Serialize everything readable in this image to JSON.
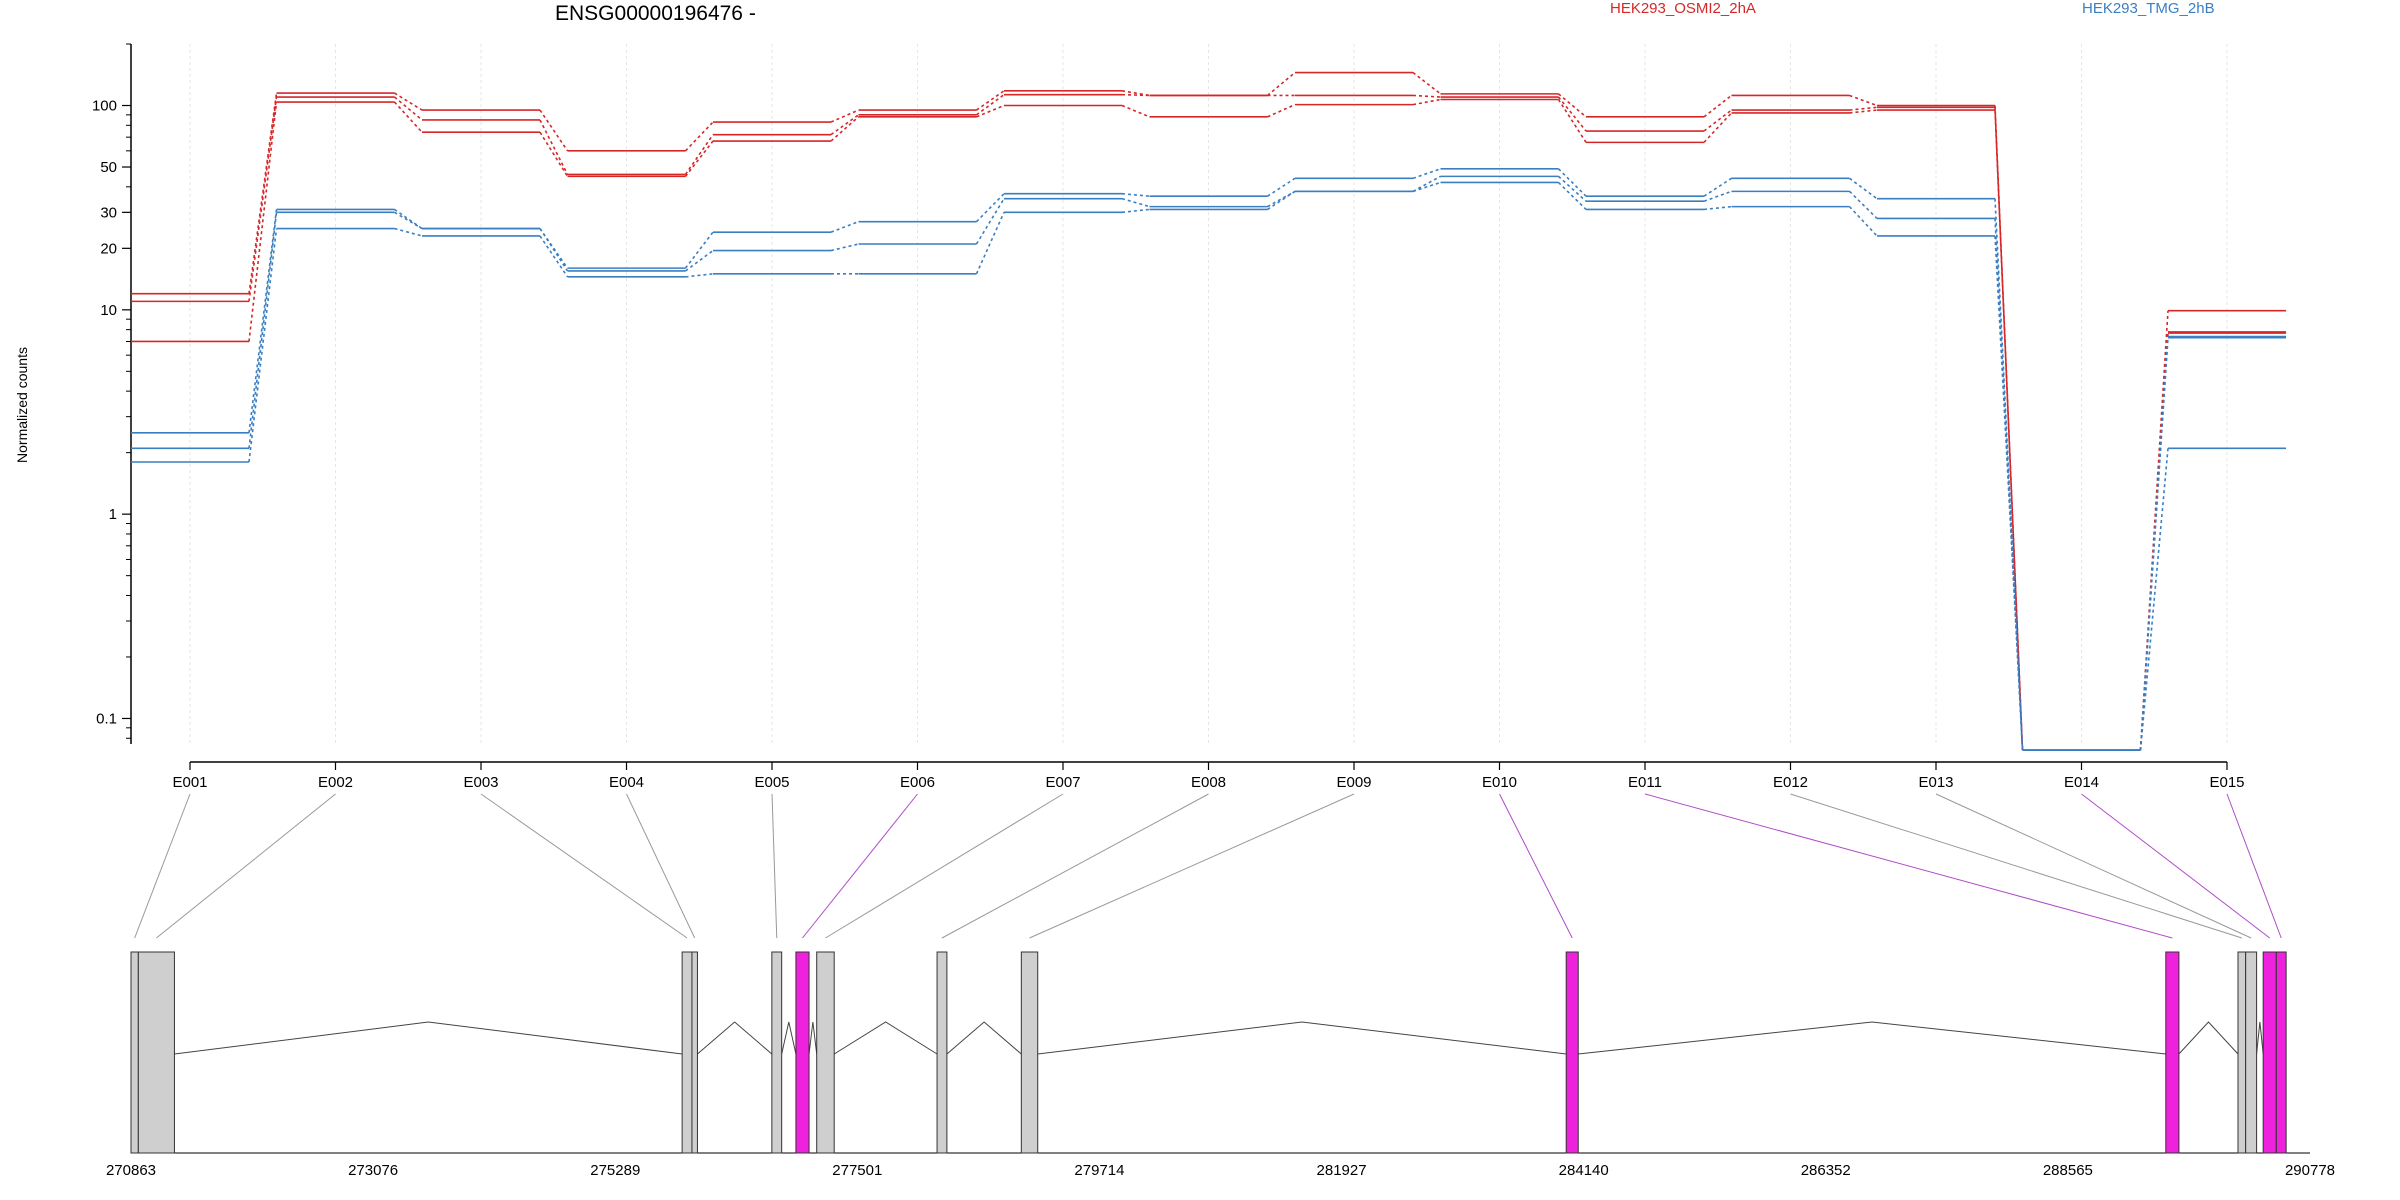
{
  "chart_data": {
    "type": "line",
    "title": "ENSG00000196476 -",
    "ylabel": "Normalized counts",
    "yscale": "log",
    "ylim": [
      0.075,
      200
    ],
    "yticks": [
      0.1,
      1,
      10,
      20,
      30,
      50,
      100
    ],
    "ytick_labels": [
      "0.1",
      "1",
      "10",
      "20",
      "30",
      "50",
      "100"
    ],
    "categories": [
      "E001",
      "E002",
      "E003",
      "E004",
      "E005",
      "E006",
      "E007",
      "E008",
      "E009",
      "E010",
      "E011",
      "E012",
      "E013",
      "E014",
      "E015"
    ],
    "series": [
      {
        "name": "HEK293_OSMI2_2hA",
        "color": "#d62728",
        "lines": [
          [
            12,
            115,
            95,
            60,
            83,
            95,
            118,
            112,
            145,
            114,
            88,
            112,
            100,
            0.07,
            9.9
          ],
          [
            11,
            110,
            85,
            46,
            72,
            90,
            113,
            112,
            112,
            110,
            75,
            95,
            98,
            0.07,
            7.8
          ],
          [
            7,
            104,
            74,
            45,
            67,
            88,
            100,
            88,
            101,
            107,
            66,
            92,
            95,
            0.07,
            7.7
          ]
        ]
      },
      {
        "name": "HEK293_TMG_2hB",
        "color": "#3a7fc1",
        "lines": [
          [
            2.5,
            31,
            25,
            16,
            24,
            27,
            37,
            36,
            44,
            49,
            36,
            44,
            35,
            0.07,
            7.4
          ],
          [
            2.1,
            30,
            25,
            15.5,
            19.5,
            21,
            35,
            32,
            38,
            45,
            34,
            38,
            28,
            0.07,
            7.3
          ],
          [
            1.8,
            25,
            23,
            14.5,
            15,
            15,
            30,
            31,
            38,
            42,
            31,
            32,
            23,
            0.07,
            2.1
          ]
        ]
      }
    ],
    "gene_model": {
      "coordinate_labels": [
        "270863",
        "273076",
        "275289",
        "277501",
        "279714",
        "281927",
        "284140",
        "286352",
        "288565",
        "290778"
      ],
      "exons": [
        {
          "id": "E001",
          "start": 270863,
          "end": 270930,
          "highlight": false
        },
        {
          "id": "E002",
          "start": 270930,
          "end": 271260,
          "highlight": false
        },
        {
          "id": "E003",
          "start": 275900,
          "end": 275990,
          "highlight": false
        },
        {
          "id": "E004",
          "start": 275990,
          "end": 276040,
          "highlight": false
        },
        {
          "id": "E005",
          "start": 276720,
          "end": 276810,
          "highlight": false
        },
        {
          "id": "E006",
          "start": 276940,
          "end": 277060,
          "highlight": true
        },
        {
          "id": "E007",
          "start": 277130,
          "end": 277290,
          "highlight": false
        },
        {
          "id": "E008",
          "start": 278230,
          "end": 278320,
          "highlight": false
        },
        {
          "id": "E009",
          "start": 279000,
          "end": 279150,
          "highlight": false
        },
        {
          "id": "E010",
          "start": 283980,
          "end": 284090,
          "highlight": true
        },
        {
          "id": "E011",
          "start": 289460,
          "end": 289580,
          "highlight": true
        },
        {
          "id": "E012",
          "start": 290120,
          "end": 290190,
          "highlight": false
        },
        {
          "id": "E013",
          "start": 290190,
          "end": 290290,
          "highlight": false
        },
        {
          "id": "E014",
          "start": 290350,
          "end": 290470,
          "highlight": true
        },
        {
          "id": "E015",
          "start": 290470,
          "end": 290560,
          "highlight": true
        }
      ],
      "exon_color": "#cfcfcf",
      "highlight_color": "#ee22dd"
    }
  }
}
